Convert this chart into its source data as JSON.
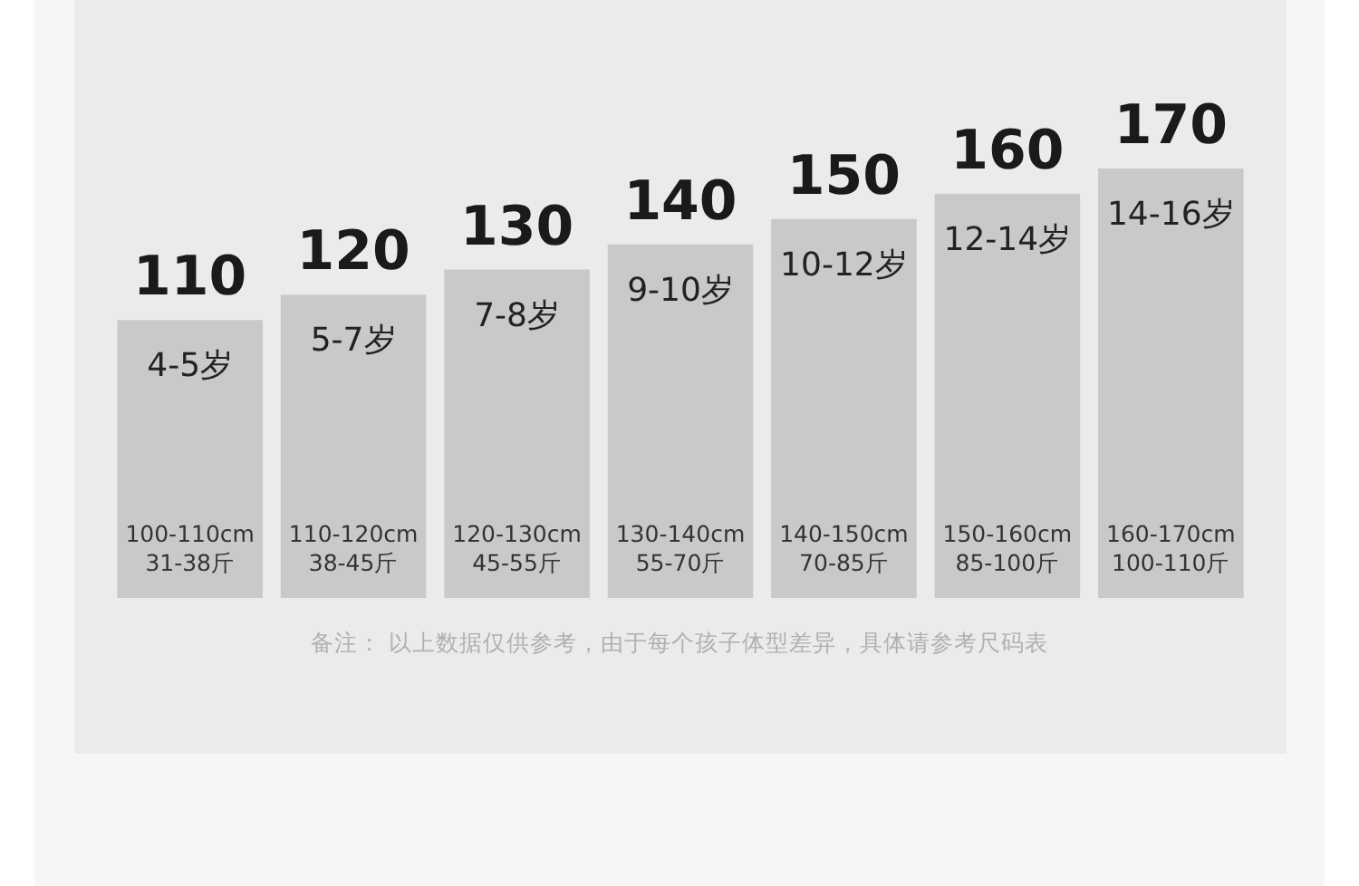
{
  "chart_data": {
    "type": "bar",
    "categories": [
      "4-5岁",
      "5-7岁",
      "7-8岁",
      "9-10岁",
      "10-12岁",
      "12-14岁",
      "14-16岁"
    ],
    "values": [
      110,
      120,
      130,
      140,
      150,
      160,
      170
    ],
    "color": "#c9c9c9",
    "data_labels": true,
    "annotations": [
      "100-110cm\n31-38斤",
      "110-120cm\n38-45斤",
      "120-130cm\n45-55斤",
      "130-140cm\n55-70斤",
      "140-150cm\n70-85斤",
      "150-160cm\n85-100斤",
      "160-170cm\n100-110斤",
      "备注：  以上数据仅供参考，由于每个孩子体型差异，具体请参考尺码表"
    ]
  }
}
